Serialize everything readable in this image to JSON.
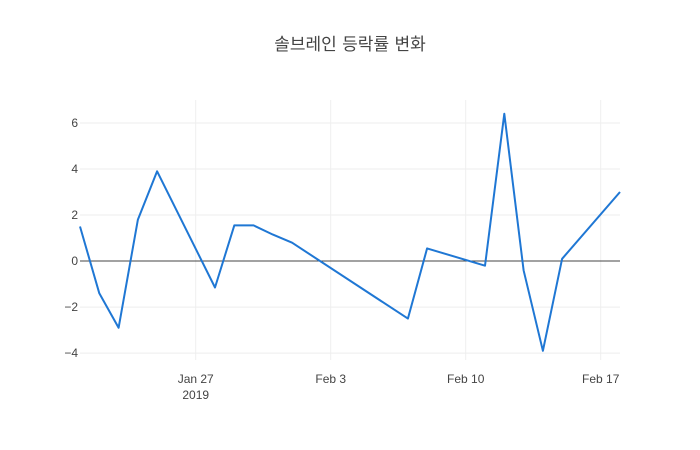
{
  "chart_data": {
    "type": "line",
    "title": "솔브레인 등락률 변화",
    "xlabel": "",
    "ylabel": "",
    "x": [
      "2019-01-21",
      "2019-01-22",
      "2019-01-23",
      "2019-01-24",
      "2019-01-25",
      "2019-01-28",
      "2019-01-29",
      "2019-01-30",
      "2019-01-31",
      "2019-02-01",
      "2019-02-07",
      "2019-02-08",
      "2019-02-11",
      "2019-02-12",
      "2019-02-13",
      "2019-02-14",
      "2019-02-15",
      "2019-02-18"
    ],
    "y": [
      1.5,
      -1.4,
      -2.9,
      1.8,
      3.9,
      -1.15,
      1.55,
      1.55,
      1.15,
      0.8,
      -2.5,
      0.55,
      -0.2,
      6.4,
      -0.4,
      -3.9,
      0.1,
      3.0
    ],
    "xlim": [
      "2019-01-21",
      "2019-02-18"
    ],
    "ylim": [
      -4.3,
      7.0
    ],
    "x_ticks": [
      {
        "date": "2019-01-27",
        "label": "Jan 27",
        "sublabel": "2019"
      },
      {
        "date": "2019-02-03",
        "label": "Feb 3",
        "sublabel": ""
      },
      {
        "date": "2019-02-10",
        "label": "Feb 10",
        "sublabel": ""
      },
      {
        "date": "2019-02-17",
        "label": "Feb 17",
        "sublabel": ""
      }
    ],
    "y_ticks": [
      -4,
      -2,
      0,
      2,
      4,
      6
    ],
    "grid": true,
    "line_color": "#1f77d4"
  }
}
